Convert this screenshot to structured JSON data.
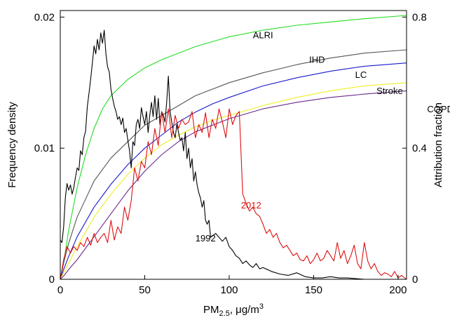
{
  "chart_data": {
    "type": "line",
    "title": "",
    "xlabel": "PM",
    "xlabel_sub": "2.5",
    "xlabel_unit": ", μg/m",
    "xlabel_sup": "3",
    "ylabel_left": "Frequency density",
    "ylabel_right": "Attribution fraction",
    "xlim": [
      0,
      205
    ],
    "ylim_left": [
      0,
      0.0205
    ],
    "ylim_right": [
      0,
      0.82
    ],
    "x_ticks": [
      0,
      50,
      100,
      150,
      200
    ],
    "x_tick_labels": [
      "0",
      "50",
      "100",
      "150",
      "200"
    ],
    "y_left_ticks": [
      0,
      0.01,
      0.02
    ],
    "y_left_tick_labels": [
      "0",
      "0.01",
      "0.02"
    ],
    "y_right_ticks": [
      0,
      0.4,
      0.8
    ],
    "y_right_tick_labels": [
      "0",
      "0.4",
      "0.8"
    ],
    "grid": false,
    "attribution_series": [
      {
        "name": "ALRI",
        "color": "#22dd22",
        "axis": "right",
        "x": [
          0,
          2,
          5,
          10,
          15,
          20,
          25,
          30,
          40,
          50,
          60,
          70,
          80,
          90,
          100,
          120,
          140,
          160,
          180,
          205
        ],
        "y": [
          0,
          0.05,
          0.15,
          0.28,
          0.38,
          0.46,
          0.52,
          0.56,
          0.61,
          0.645,
          0.67,
          0.69,
          0.71,
          0.725,
          0.74,
          0.76,
          0.775,
          0.785,
          0.795,
          0.805
        ]
      },
      {
        "name": "IHD",
        "color": "#555555",
        "axis": "right",
        "x": [
          0,
          2,
          5,
          10,
          20,
          30,
          40,
          50,
          60,
          70,
          80,
          90,
          100,
          120,
          140,
          160,
          180,
          205
        ],
        "y": [
          0,
          0.05,
          0.11,
          0.19,
          0.3,
          0.37,
          0.42,
          0.47,
          0.5,
          0.53,
          0.56,
          0.58,
          0.6,
          0.63,
          0.655,
          0.675,
          0.69,
          0.7
        ]
      },
      {
        "name": "LC",
        "color": "#1a1acc",
        "axis": "right",
        "x": [
          0,
          2,
          5,
          10,
          20,
          30,
          40,
          50,
          60,
          70,
          80,
          90,
          100,
          120,
          140,
          160,
          180,
          205
        ],
        "y": [
          0,
          0.03,
          0.07,
          0.13,
          0.22,
          0.29,
          0.35,
          0.4,
          0.44,
          0.48,
          0.51,
          0.535,
          0.555,
          0.59,
          0.615,
          0.635,
          0.65,
          0.66
        ]
      },
      {
        "name": "Stroke",
        "color": "#eeee22",
        "axis": "right",
        "x": [
          0,
          2,
          5,
          10,
          20,
          30,
          40,
          50,
          60,
          70,
          80,
          90,
          100,
          120,
          140,
          160,
          180,
          205
        ],
        "y": [
          0,
          0.02,
          0.05,
          0.1,
          0.19,
          0.26,
          0.32,
          0.37,
          0.41,
          0.44,
          0.465,
          0.485,
          0.5,
          0.53,
          0.555,
          0.575,
          0.59,
          0.6
        ]
      },
      {
        "name": "COPD",
        "color": "#6a2a8a",
        "axis": "right",
        "x": [
          0,
          2,
          5,
          10,
          20,
          30,
          40,
          50,
          60,
          70,
          80,
          90,
          100,
          120,
          140,
          160,
          180,
          205
        ],
        "y": [
          0,
          0.01,
          0.03,
          0.06,
          0.13,
          0.2,
          0.27,
          0.33,
          0.38,
          0.42,
          0.45,
          0.47,
          0.49,
          0.52,
          0.54,
          0.555,
          0.565,
          0.575
        ]
      }
    ],
    "density_series": [
      {
        "name": "1992",
        "color": "#000000",
        "axis": "left",
        "x": [
          0,
          1,
          2,
          3,
          4,
          5,
          6,
          7,
          8,
          9,
          10,
          11,
          12,
          13,
          14,
          15,
          16,
          17,
          18,
          19,
          20,
          21,
          22,
          23,
          24,
          25,
          26,
          27,
          28,
          29,
          30,
          31,
          32,
          33,
          34,
          35,
          36,
          37,
          38,
          39,
          40,
          41,
          42,
          43,
          44,
          45,
          46,
          47,
          48,
          49,
          50,
          51,
          52,
          53,
          54,
          55,
          56,
          57,
          58,
          59,
          60,
          61,
          62,
          63,
          64,
          65,
          66,
          67,
          68,
          69,
          70,
          71,
          72,
          73,
          74,
          75,
          76,
          77,
          78,
          79,
          80,
          81,
          82,
          83,
          84,
          85,
          86,
          87,
          88,
          89,
          90,
          92,
          94,
          96,
          98,
          100,
          102,
          104,
          106,
          108,
          110,
          112,
          114,
          116,
          118,
          120,
          125,
          130,
          135,
          140,
          145,
          150,
          155,
          160,
          165,
          170,
          180,
          190,
          200,
          205
        ],
        "y": [
          0.003,
          0.0028,
          0.004,
          0.0062,
          0.0073,
          0.0068,
          0.0072,
          0.0065,
          0.007,
          0.0078,
          0.0085,
          0.0083,
          0.0098,
          0.0095,
          0.0108,
          0.0113,
          0.0132,
          0.0142,
          0.0153,
          0.0165,
          0.0178,
          0.0172,
          0.0183,
          0.0175,
          0.0188,
          0.018,
          0.019,
          0.0172,
          0.0162,
          0.0158,
          0.0145,
          0.0138,
          0.0132,
          0.0128,
          0.0122,
          0.0124,
          0.0118,
          0.0123,
          0.0112,
          0.0115,
          0.0106,
          0.0098,
          0.0085,
          0.0105,
          0.0102,
          0.0118,
          0.0122,
          0.0115,
          0.0131,
          0.0124,
          0.0118,
          0.0128,
          0.0112,
          0.0125,
          0.0135,
          0.0124,
          0.014,
          0.0122,
          0.0138,
          0.0118,
          0.0128,
          0.0125,
          0.012,
          0.0135,
          0.0155,
          0.0128,
          0.012,
          0.0112,
          0.0108,
          0.0118,
          0.0112,
          0.0106,
          0.0108,
          0.0098,
          0.0112,
          0.0092,
          0.01,
          0.0085,
          0.0092,
          0.0075,
          0.0082,
          0.0072,
          0.0066,
          0.0062,
          0.0055,
          0.006,
          0.0045,
          0.0042,
          0.0045,
          0.0032,
          0.0033,
          0.0035,
          0.0032,
          0.0029,
          0.0032,
          0.0025,
          0.0022,
          0.0018,
          0.0016,
          0.0012,
          0.0014,
          0.0011,
          0.0009,
          0.0012,
          0.0008,
          0.0009,
          0.0006,
          0.0004,
          0.0003,
          0.0005,
          0.0002,
          0.0001,
          0.0001,
          0.0002,
          0.0001,
          0.0001,
          0.0,
          0.0,
          0.0,
          0.0
        ]
      },
      {
        "name": "2012",
        "color": "#dd1111",
        "axis": "left",
        "x": [
          0,
          2,
          4,
          6,
          8,
          10,
          12,
          14,
          16,
          18,
          20,
          22,
          24,
          26,
          28,
          30,
          32,
          34,
          36,
          38,
          40,
          42,
          44,
          46,
          48,
          50,
          52,
          54,
          56,
          58,
          60,
          62,
          64,
          66,
          68,
          70,
          72,
          74,
          76,
          78,
          80,
          82,
          84,
          86,
          88,
          90,
          92,
          94,
          96,
          98,
          100,
          102,
          104,
          106,
          108,
          110,
          112,
          114,
          116,
          118,
          120,
          122,
          124,
          126,
          128,
          130,
          132,
          134,
          136,
          138,
          140,
          142,
          144,
          146,
          148,
          150,
          152,
          154,
          156,
          158,
          160,
          162,
          164,
          166,
          168,
          170,
          172,
          174,
          176,
          178,
          180,
          182,
          184,
          186,
          188,
          190,
          192,
          194,
          196,
          198,
          200,
          202,
          205
        ],
        "y": [
          0.0,
          0.0015,
          0.0025,
          0.002,
          0.0025,
          0.0022,
          0.0028,
          0.0025,
          0.0032,
          0.0026,
          0.0035,
          0.0028,
          0.0032,
          0.0035,
          0.0028,
          0.0045,
          0.003,
          0.004,
          0.0035,
          0.0055,
          0.0045,
          0.006,
          0.0085,
          0.0075,
          0.009,
          0.0085,
          0.0105,
          0.0095,
          0.0115,
          0.0102,
          0.0128,
          0.0112,
          0.013,
          0.0108,
          0.0125,
          0.0115,
          0.0122,
          0.0118,
          0.012,
          0.0128,
          0.0108,
          0.0118,
          0.0112,
          0.0127,
          0.0108,
          0.0122,
          0.0115,
          0.013,
          0.012,
          0.0108,
          0.013,
          0.0118,
          0.0125,
          0.0128,
          0.0065,
          0.0058,
          0.0052,
          0.0055,
          0.005,
          0.0048,
          0.0042,
          0.0035,
          0.0038,
          0.0032,
          0.0035,
          0.0028,
          0.0024,
          0.0026,
          0.0022,
          0.0018,
          0.002,
          0.0015,
          0.0014,
          0.0018,
          0.0012,
          0.0015,
          0.002,
          0.0014,
          0.0016,
          0.0022,
          0.0018,
          0.0014,
          0.0028,
          0.0016,
          0.0022,
          0.0012,
          0.0018,
          0.0026,
          0.0012,
          0.0008,
          0.0028,
          0.0014,
          0.0008,
          0.0012,
          0.0006,
          0.0003,
          0.0005,
          0.0004,
          0.0002,
          0.0006,
          0.0001,
          0.0003,
          0.0
        ]
      }
    ],
    "curve_labels": [
      {
        "text": "ALRI",
        "x": 120,
        "y_right": 0.735
      },
      {
        "text": "IHD",
        "x": 152,
        "y_right": 0.66
      },
      {
        "text": "LC",
        "x": 178,
        "y_right": 0.615
      },
      {
        "text": "Stroke",
        "x": 195,
        "y_right": 0.565
      },
      {
        "text": "COPD",
        "x": 225,
        "y_right": 0.51
      },
      {
        "text": "2012",
        "x": 113,
        "y_left": 0.0054,
        "color": "#dd1111"
      },
      {
        "text": "1992",
        "x": 86,
        "y_left": 0.0029,
        "color": "#000000"
      }
    ]
  }
}
